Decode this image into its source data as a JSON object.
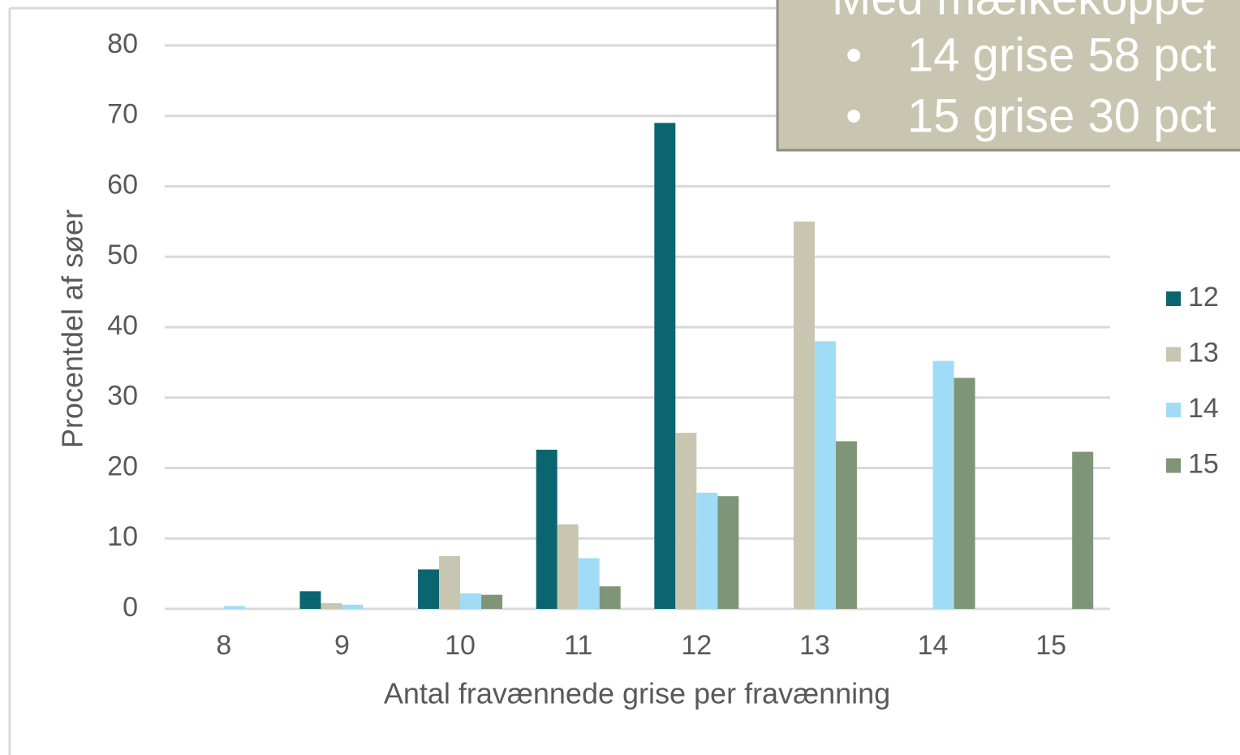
{
  "chart_data": {
    "type": "bar",
    "x_label": "Antal fravænnede grise per fravænning",
    "y_label": "Procentdel af søer",
    "categories": [
      "8",
      "9",
      "10",
      "11",
      "12",
      "13",
      "14",
      "15"
    ],
    "series": [
      {
        "name": "12",
        "color": "#0b6570",
        "values": [
          0,
          2.5,
          5.6,
          22.6,
          69,
          0,
          0,
          0
        ]
      },
      {
        "name": "13",
        "color": "#c8c6b0",
        "values": [
          0,
          0.8,
          7.5,
          12,
          25,
          55,
          0,
          0
        ]
      },
      {
        "name": "14",
        "color": "#a0dcf5",
        "values": [
          0.4,
          0.6,
          2.2,
          7.2,
          16.5,
          38,
          35.2,
          0
        ]
      },
      {
        "name": "15",
        "color": "#7e9677",
        "values": [
          0,
          0,
          2,
          3.2,
          16,
          23.8,
          32.8,
          22.3
        ]
      }
    ],
    "ylim": [
      0,
      80
    ],
    "yticks": [
      0,
      10,
      20,
      30,
      40,
      50,
      60,
      70,
      80
    ],
    "grid": true,
    "legend": "right",
    "annotation": {
      "title": "Med mælkekoppe",
      "items": [
        "14 grise 58 pct",
        "15 grise 30 pct"
      ]
    }
  }
}
